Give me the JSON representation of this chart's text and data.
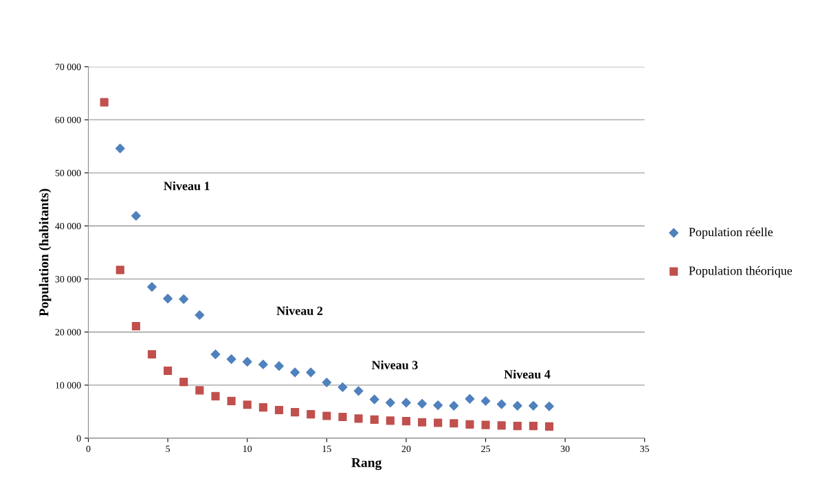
{
  "chart_data": {
    "type": "scatter",
    "xlabel": "Rang",
    "ylabel": "Population (habitants)",
    "x": [
      1,
      2,
      3,
      4,
      5,
      6,
      7,
      8,
      9,
      10,
      11,
      12,
      13,
      14,
      15,
      16,
      17,
      18,
      19,
      20,
      21,
      22,
      23,
      24,
      25,
      26,
      27,
      28,
      29
    ],
    "series": [
      {
        "name": "Population réelle",
        "color": "#4f81bd",
        "marker": "diamond",
        "values": [
          null,
          54600,
          41900,
          28500,
          26300,
          26200,
          23200,
          15800,
          14900,
          14400,
          13900,
          13600,
          12400,
          12400,
          10500,
          9600,
          8900,
          7300,
          6700,
          6700,
          6500,
          6200,
          6100,
          7400,
          7000,
          6400,
          6100,
          6100,
          6000
        ]
      },
      {
        "name": "Population théorique",
        "color": "#c0504d",
        "marker": "square",
        "values": [
          63300,
          31700,
          21100,
          15800,
          12700,
          10600,
          9000,
          7900,
          7000,
          6300,
          5800,
          5300,
          4900,
          4500,
          4200,
          4000,
          3700,
          3500,
          3300,
          3200,
          3000,
          2900,
          2800,
          2600,
          2500,
          2400,
          2300,
          2300,
          2200
        ]
      }
    ],
    "xlim": [
      0,
      35
    ],
    "xticks": [
      0,
      5,
      10,
      15,
      20,
      25,
      30,
      35
    ],
    "ylim": [
      0,
      70000
    ],
    "yticks": [
      {
        "value": 0,
        "label": "0"
      },
      {
        "value": 10000,
        "label": "10 000"
      },
      {
        "value": 20000,
        "label": "20 000"
      },
      {
        "value": 30000,
        "label": "30 000"
      },
      {
        "value": 40000,
        "label": "40 000"
      },
      {
        "value": 50000,
        "label": "50 000"
      },
      {
        "value": 60000,
        "label": "60 000"
      },
      {
        "value": 70000,
        "label": "70 000"
      }
    ],
    "grid": "y",
    "legend": "right",
    "annotations": [
      "Niveau 1",
      "Niveau 2",
      "Niveau 3",
      "Niveau 4"
    ]
  }
}
